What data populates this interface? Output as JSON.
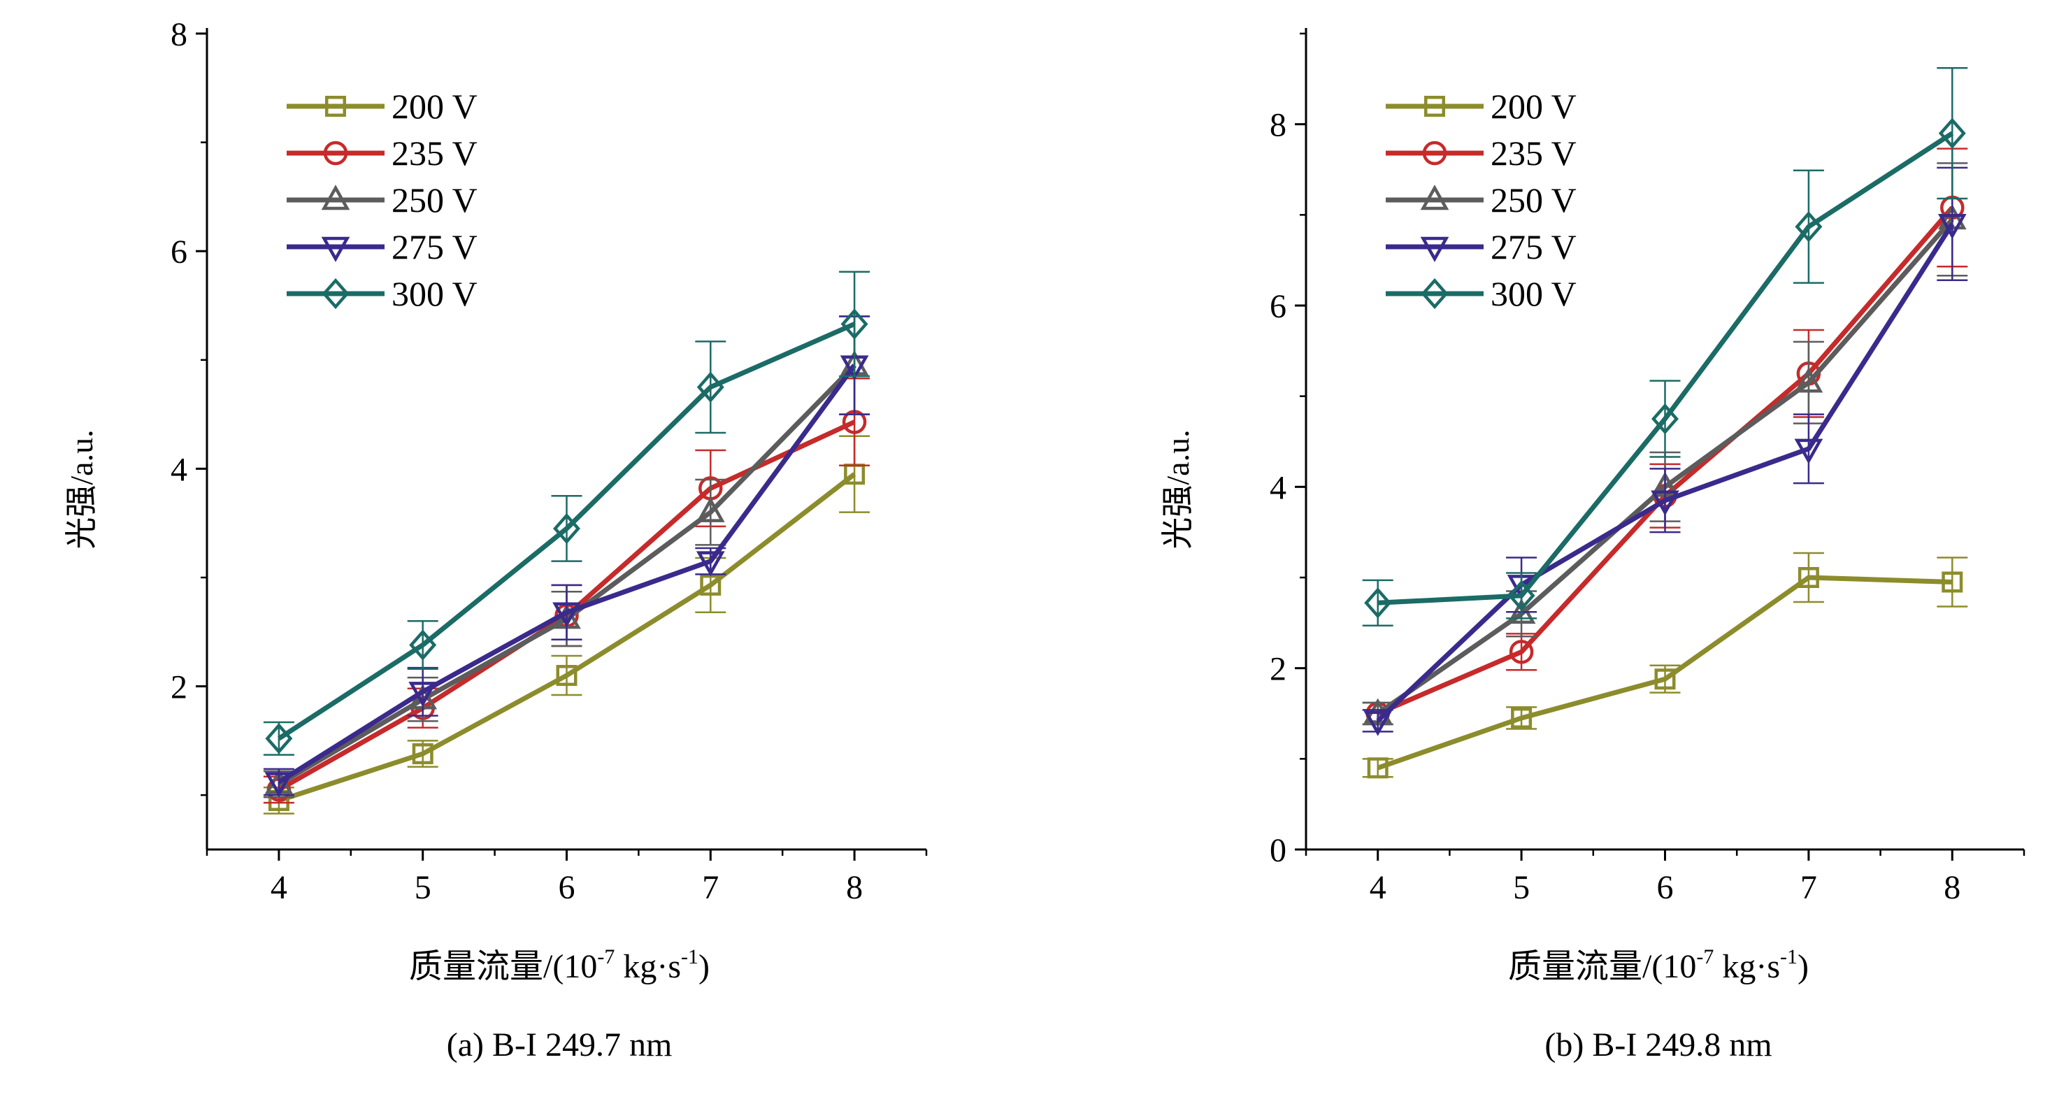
{
  "chart_data": [
    {
      "type": "line",
      "caption": "(a) B-I 249.7 nm",
      "xlabel_main": "质量流量/(10",
      "xlabel_exp1": "-7",
      "xlabel_mid": " kg·s",
      "xlabel_exp2": "-1",
      "xlabel_end": ")",
      "ylabel": "光强/a.u.",
      "x": [
        4,
        5,
        6,
        7,
        8
      ],
      "xlim": [
        3.5,
        8.5
      ],
      "ylim": [
        0.5,
        8
      ],
      "xticks": [
        4,
        5,
        6,
        7,
        8
      ],
      "yticks": [
        2,
        4,
        6,
        8
      ],
      "legend_position": "top-left",
      "series": [
        {
          "name": "200 V",
          "color": "#8c8c2c",
          "marker": "square",
          "values": [
            0.95,
            1.38,
            2.1,
            2.93,
            3.95
          ],
          "errors": [
            0.12,
            0.12,
            0.18,
            0.25,
            0.35
          ]
        },
        {
          "name": "235 V",
          "color": "#c62a2a",
          "marker": "circle",
          "values": [
            1.05,
            1.8,
            2.65,
            3.82,
            4.43
          ],
          "errors": [
            0.12,
            0.18,
            0.28,
            0.35,
            0.4
          ]
        },
        {
          "name": "250 V",
          "color": "#5c5c5c",
          "marker": "triangle-up",
          "values": [
            1.1,
            1.88,
            2.62,
            3.6,
            4.95
          ],
          "errors": [
            0.12,
            0.2,
            0.25,
            0.3,
            0.45
          ]
        },
        {
          "name": "275 V",
          "color": "#3a2a8c",
          "marker": "triangle-down",
          "values": [
            1.12,
            1.95,
            2.68,
            3.15,
            4.95
          ],
          "errors": [
            0.12,
            0.22,
            0.25,
            0.12,
            0.45
          ]
        },
        {
          "name": "300 V",
          "color": "#1b6b66",
          "marker": "diamond",
          "values": [
            1.52,
            2.38,
            3.45,
            4.75,
            5.33
          ],
          "errors": [
            0.15,
            0.22,
            0.3,
            0.42,
            0.48
          ]
        }
      ]
    },
    {
      "type": "line",
      "caption": "(b) B-I 249.8 nm",
      "xlabel_main": "质量流量/(10",
      "xlabel_exp1": "-7",
      "xlabel_mid": " kg·s",
      "xlabel_exp2": "-1",
      "xlabel_end": ")",
      "ylabel": "光强/a.u.",
      "x": [
        4,
        5,
        6,
        7,
        8
      ],
      "xlim": [
        3.5,
        8.5
      ],
      "ylim": [
        0,
        9
      ],
      "xticks": [
        4,
        5,
        6,
        7,
        8
      ],
      "yticks": [
        0,
        2,
        4,
        6,
        8
      ],
      "legend_position": "top-left",
      "series": [
        {
          "name": "200 V",
          "color": "#8c8c2c",
          "marker": "square",
          "values": [
            0.9,
            1.45,
            1.88,
            3.0,
            2.95
          ],
          "errors": [
            0.1,
            0.12,
            0.15,
            0.27,
            0.27
          ]
        },
        {
          "name": "235 V",
          "color": "#c62a2a",
          "marker": "circle",
          "values": [
            1.5,
            2.18,
            3.9,
            5.25,
            7.08
          ],
          "errors": [
            0.12,
            0.2,
            0.35,
            0.48,
            0.65
          ]
        },
        {
          "name": "250 V",
          "color": "#5c5c5c",
          "marker": "triangle-up",
          "values": [
            1.5,
            2.6,
            4.0,
            5.15,
            6.95
          ],
          "errors": [
            0.12,
            0.25,
            0.38,
            0.45,
            0.62
          ]
        },
        {
          "name": "275 V",
          "color": "#3a2a8c",
          "marker": "triangle-down",
          "values": [
            1.42,
            2.92,
            3.85,
            4.42,
            6.9
          ],
          "errors": [
            0.12,
            0.3,
            0.35,
            0.38,
            0.62
          ]
        },
        {
          "name": "300 V",
          "color": "#1b6b66",
          "marker": "diamond",
          "values": [
            2.72,
            2.8,
            4.75,
            6.87,
            7.9
          ],
          "errors": [
            0.25,
            0.25,
            0.42,
            0.62,
            0.72
          ]
        }
      ]
    }
  ]
}
